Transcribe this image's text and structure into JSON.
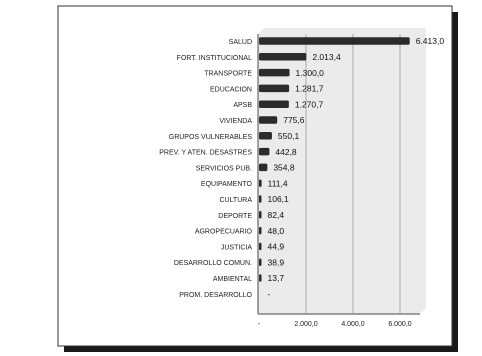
{
  "chart_data": {
    "type": "bar",
    "orientation": "horizontal",
    "categories": [
      "SALUD",
      "FORT. INSTITUCIONAL",
      "TRANSPORTE",
      "EDUCACION",
      "APSB",
      "VIVIENDA",
      "GRUPOS VULNERABLES",
      "PREV. Y ATEN. DESASTRES",
      "SERVICIOS PUB.",
      "EQUIPAMENTO",
      "CULTURA",
      "DEPORTE",
      "AGROPECUARIO",
      "JUSTICIA",
      "DESARROLLO COMUN.",
      "AMBIENTAL",
      "PROM. DESARROLLO"
    ],
    "values": [
      6413.0,
      2013.4,
      1300.0,
      1281.7,
      1270.7,
      775.6,
      550.1,
      442.8,
      354.8,
      111.4,
      106.1,
      82.4,
      48.0,
      44.9,
      38.9,
      13.7,
      0
    ],
    "value_labels": [
      "6.413,0",
      "2.013,4",
      "1.300,0",
      "1.281,7",
      "1.270,7",
      "775,6",
      "550,1",
      "442,8",
      "354,8",
      "111,4",
      "106,1",
      "82,4",
      "48,0",
      "44,9",
      "38,9",
      "13,7",
      "-"
    ],
    "xticks": [
      "-",
      "2.000,0",
      "4.000,0",
      "6.000,0"
    ],
    "xtick_values": [
      0,
      2000,
      4000,
      6000
    ],
    "xlim": [
      0,
      6500
    ],
    "grid": true,
    "title": "",
    "xlabel": "",
    "ylabel": "",
    "colors": {
      "bar": "#2b2b2b",
      "plot_background": "#ebebeb",
      "border": "#1a1a1a",
      "grid": "#9a9a9a"
    }
  }
}
